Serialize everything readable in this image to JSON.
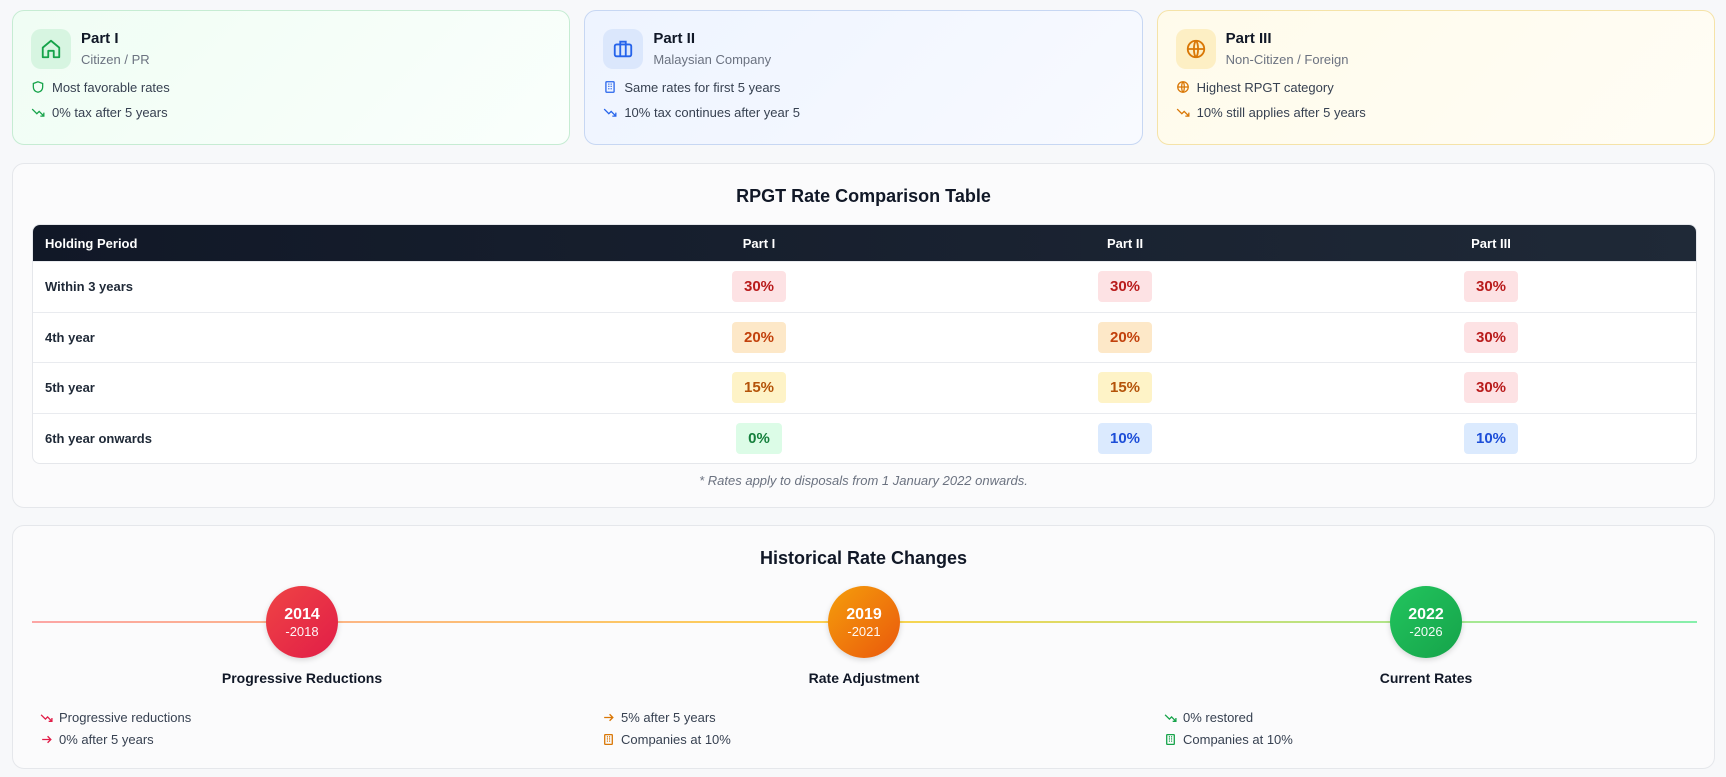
{
  "cards": [
    {
      "title": "Part I",
      "subtitle": "Citizen / PR",
      "features": [
        "Most favorable rates",
        "0% tax after 5 years"
      ]
    },
    {
      "title": "Part II",
      "subtitle": "Malaysian Company",
      "features": [
        "Same rates for first 5 years",
        "10% tax continues after year 5"
      ]
    },
    {
      "title": "Part III",
      "subtitle": "Non-Citizen / Foreign",
      "features": [
        "Highest RPGT category",
        "10% still applies after 5 years"
      ]
    }
  ],
  "table": {
    "title": "RPGT Rate Comparison Table",
    "headers": [
      "Holding Period",
      "Part I",
      "Part II",
      "Part III"
    ],
    "rows": [
      {
        "period": "Within 3 years",
        "rates": [
          "30%",
          "30%",
          "30%"
        ]
      },
      {
        "period": "4th year",
        "rates": [
          "20%",
          "20%",
          "30%"
        ]
      },
      {
        "period": "5th year",
        "rates": [
          "15%",
          "15%",
          "30%"
        ]
      },
      {
        "period": "6th year onwards",
        "rates": [
          "0%",
          "10%",
          "10%"
        ]
      }
    ],
    "footnote": "* Rates apply to disposals from 1 January 2022 onwards."
  },
  "timeline": {
    "title": "Historical Rate Changes",
    "milestones": [
      {
        "year": "2014",
        "end": "-2018",
        "title": "Progressive Reductions",
        "items": [
          "Progressive reductions",
          "0% after 5 years"
        ]
      },
      {
        "year": "2019",
        "end": "-2021",
        "title": "Rate Adjustment",
        "items": [
          "5% after 5 years",
          "Companies at 10%"
        ]
      },
      {
        "year": "2022",
        "end": "-2026",
        "title": "Current Rates",
        "items": [
          "0% restored",
          "Companies at 10%"
        ]
      }
    ]
  }
}
